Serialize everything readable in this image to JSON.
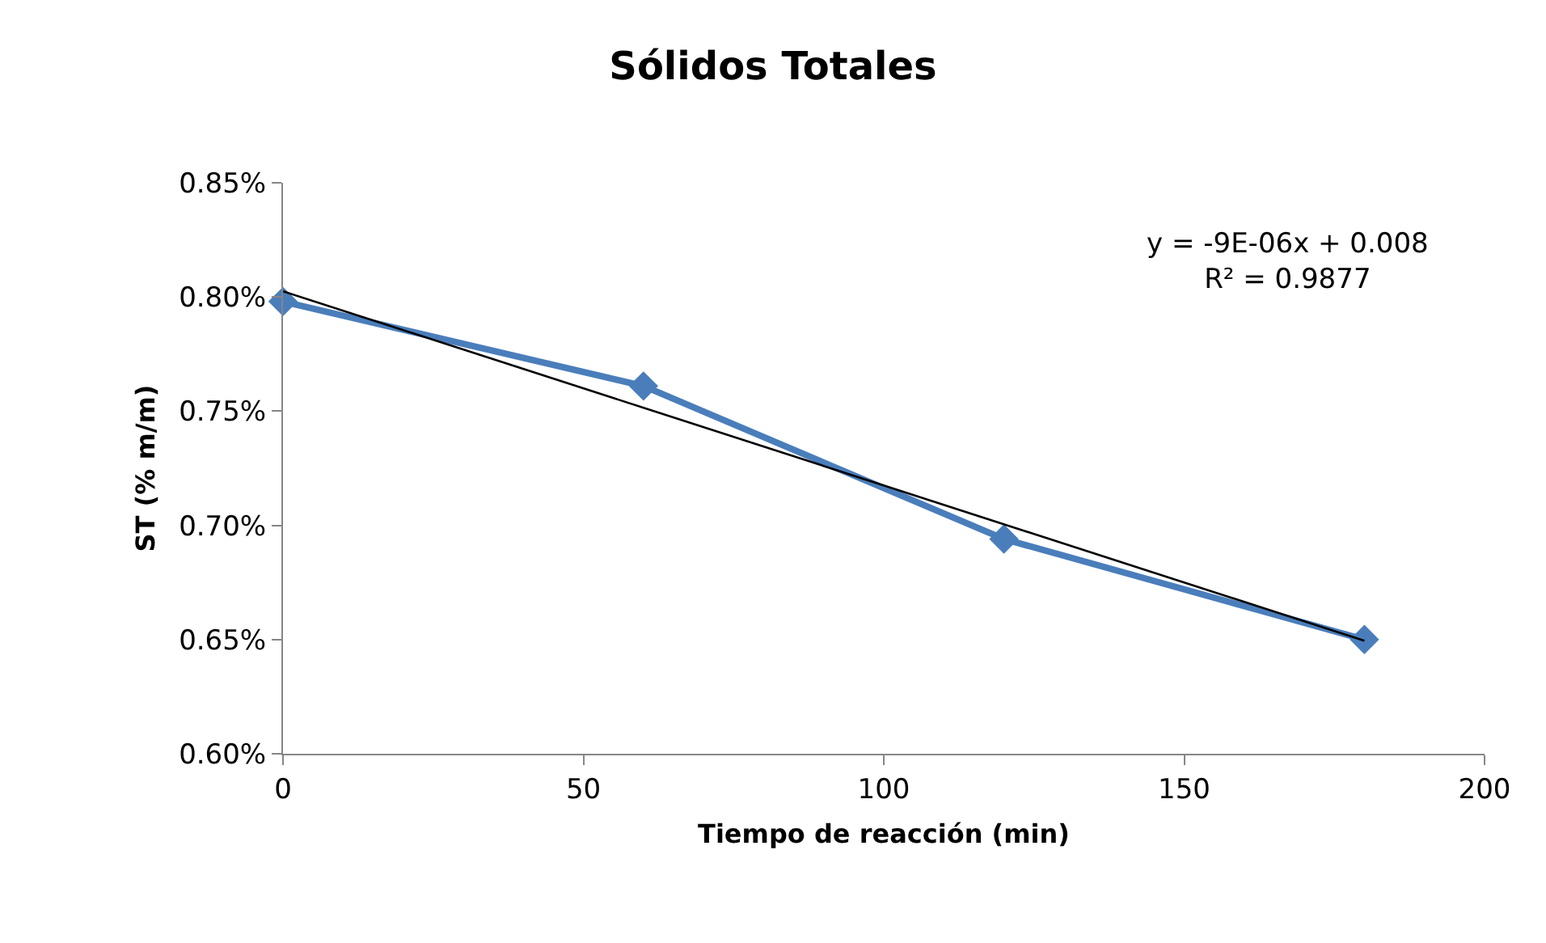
{
  "chart_data": {
    "type": "line",
    "title": "Sólidos Totales",
    "xlabel": "Tiempo de reacción (min)",
    "ylabel": "ST (% m/m)",
    "x": [
      0,
      60,
      120,
      180
    ],
    "series": [
      {
        "color": "#4a7ebb",
        "values": [
          0.798,
          0.761,
          0.694,
          0.65
        ],
        "marker": "diamond"
      },
      {
        "type": "line",
        "color": "#000000",
        "x": [
          0,
          180
        ],
        "values": [
          0.8025,
          0.6495
        ],
        "marker": "none"
      }
    ],
    "annotations": [
      "y = -9E-06x + 0.008\nR² = 0.9877"
    ],
    "xlim": [
      0,
      200
    ],
    "xticks": [
      0,
      50,
      100,
      150,
      200
    ],
    "ylim": [
      0.6,
      0.85
    ],
    "yticks": [
      {
        "value": 0.6,
        "label": "0.60%"
      },
      {
        "value": 0.65,
        "label": "0.65%"
      },
      {
        "value": 0.7,
        "label": "0.70%"
      },
      {
        "value": 0.75,
        "label": "0.75%"
      },
      {
        "value": 0.8,
        "label": "0.80%"
      },
      {
        "value": 0.85,
        "label": "0.85%"
      }
    ],
    "grid": false
  }
}
